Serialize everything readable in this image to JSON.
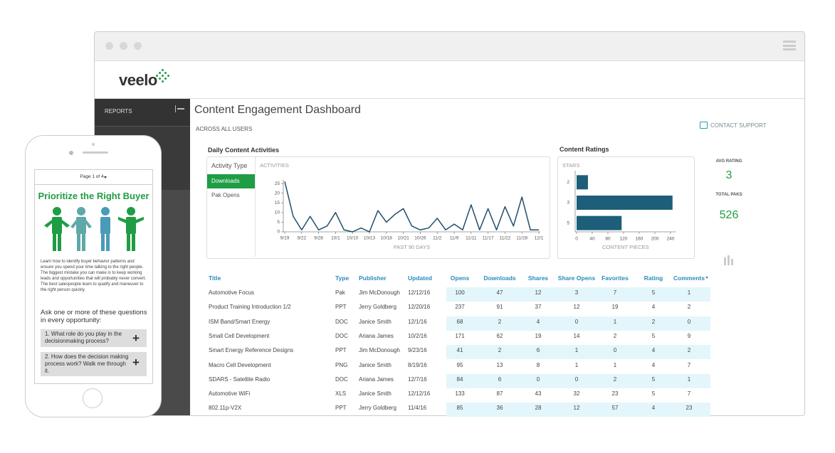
{
  "header": {
    "logo": "veelo",
    "title": "Content Engagement Dashboard",
    "scope": "ACROSS ALL USERS",
    "support": "CONTACT SUPPORT"
  },
  "sidebar": {
    "reports": "REPORTS"
  },
  "activity_panel": {
    "label": "Activity Type",
    "options": [
      "Downloads",
      "Pak Opens"
    ]
  },
  "chart_data": [
    {
      "type": "line",
      "title": "Daily Content Activities",
      "ylabel": "ACTIVITIES",
      "xlabel": "PAST 90 DAYS",
      "categories": [
        "9/19",
        null,
        "9/22",
        null,
        "9/28",
        null,
        "10/1",
        null,
        "10/10",
        null,
        "10/13",
        null,
        "10/18",
        null,
        "10/21",
        null,
        "10/26",
        null,
        "11/2",
        null,
        "11/9",
        null,
        "11/11",
        null,
        "11/17",
        null,
        "11/22",
        null,
        "11/28",
        null,
        "12/1"
      ],
      "values": [
        26,
        8,
        1,
        8,
        1,
        3,
        10,
        1,
        0,
        2,
        0,
        11,
        5,
        9,
        12,
        3,
        1,
        2,
        7,
        1,
        4,
        1,
        14,
        1,
        12,
        1,
        13,
        3,
        18,
        1,
        1
      ],
      "color": "#1f4e6b",
      "ylim": [
        0,
        27
      ],
      "yticks": [
        0,
        5,
        10,
        15,
        20,
        25
      ]
    },
    {
      "type": "hbar",
      "title": "Content Ratings",
      "ylabel": "STARS",
      "xlabel": "CONTENT PIECES",
      "categories": [
        "2",
        "3",
        "5"
      ],
      "values": [
        29,
        245,
        115
      ],
      "color": "#1d5f7a",
      "xlim": [
        0,
        250
      ],
      "xticks": [
        0,
        40,
        80,
        120,
        160,
        200,
        240
      ]
    }
  ],
  "stats": {
    "avg_label": "AVG RATING",
    "avg": "3",
    "total_label": "TOTAL PAKS",
    "total": "526"
  },
  "table": {
    "columns": [
      "Title",
      "Type",
      "Publisher",
      "Updated",
      "Opens",
      "Downloads",
      "Shares",
      "Share Opens",
      "Favorites",
      "Rating",
      "Comments"
    ],
    "rows": [
      [
        "Automotive Focus",
        "Pak",
        "Jim McDonough",
        "12/12/16",
        "100",
        "47",
        "12",
        "3",
        "7",
        "5",
        "1"
      ],
      [
        "Product Training Introduction 1/2",
        "PPT",
        "Jerry Goldberg",
        "12/20/16",
        "237",
        "91",
        "37",
        "12",
        "19",
        "4",
        "2"
      ],
      [
        "ISM Band/Smart Energy",
        "DOC",
        "Janice Smith",
        "12/1/16",
        "68",
        "2",
        "4",
        "0",
        "1",
        "2",
        "0"
      ],
      [
        "Small Cell Development",
        "DOC",
        "Ariana James",
        "10/2/16",
        "171",
        "62",
        "19",
        "14",
        "2",
        "5",
        "9"
      ],
      [
        "Smart Energy Reference Designs",
        "PPT",
        "Jim McDonough",
        "9/23/16",
        "41",
        "2",
        "6",
        "1",
        "0",
        "4",
        "2"
      ],
      [
        "Macro Cell Development",
        "PNG",
        "Janice Smith",
        "8/19/16",
        "95",
        "13",
        "8",
        "1",
        "1",
        "4",
        "7"
      ],
      [
        "SDARS - Satellite Radio",
        "DOC",
        "Ariana James",
        "12/7/16",
        "84",
        "6",
        "0",
        "0",
        "2",
        "5",
        "1"
      ],
      [
        "Automotive WiFi",
        "XLS",
        "Janice Smith",
        "12/12/16",
        "133",
        "87",
        "43",
        "32",
        "23",
        "5",
        "7"
      ],
      [
        "802.11p-V2X",
        "PPT",
        "Jerry Goldberg",
        "11/4/16",
        "85",
        "36",
        "28",
        "12",
        "57",
        "4",
        "23"
      ]
    ]
  },
  "phone": {
    "page": "Page 1 of 4",
    "title": "Prioritize the Right Buyer",
    "body": "Learn how to identify buyer behavior patterns and ensure you spend your time talking to the right people. The biggest mistake you can make is to keep working leads and opportunities that will probably never convert. The best salespeople learn to qualify and maneuver to the right person quickly.",
    "prompt": "Ask one or more of these questions in every opportunity:",
    "questions": [
      "1. What role do you play in the decisionmaking process?",
      "2. How does the decision making process work? Walk me through it."
    ]
  }
}
